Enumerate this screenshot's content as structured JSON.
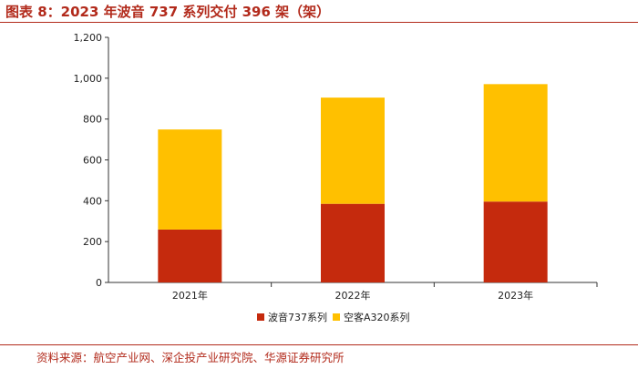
{
  "header": {
    "title": "图表 8：2023 年波音 737 系列交付 396 架（架）"
  },
  "footer": {
    "source": "资料来源：航空产业网、深企投产业研究院、华源证券研究所"
  },
  "chart_data": {
    "type": "bar",
    "stacked": true,
    "categories": [
      "2021年",
      "2022年",
      "2023年"
    ],
    "series": [
      {
        "name": "波音737系列",
        "values": [
          259,
          385,
          396
        ],
        "color": "#c52a0d"
      },
      {
        "name": "空客A320系列",
        "values": [
          490,
          520,
          575
        ],
        "color": "#ffc000"
      }
    ],
    "ylim": [
      0,
      1200
    ],
    "yticks": [
      "0",
      "200",
      "400",
      "600",
      "800",
      "1,000",
      "1,200"
    ],
    "ytick_values": [
      0,
      200,
      400,
      600,
      800,
      1000,
      1200
    ],
    "grid": false,
    "legend": "bottom"
  }
}
